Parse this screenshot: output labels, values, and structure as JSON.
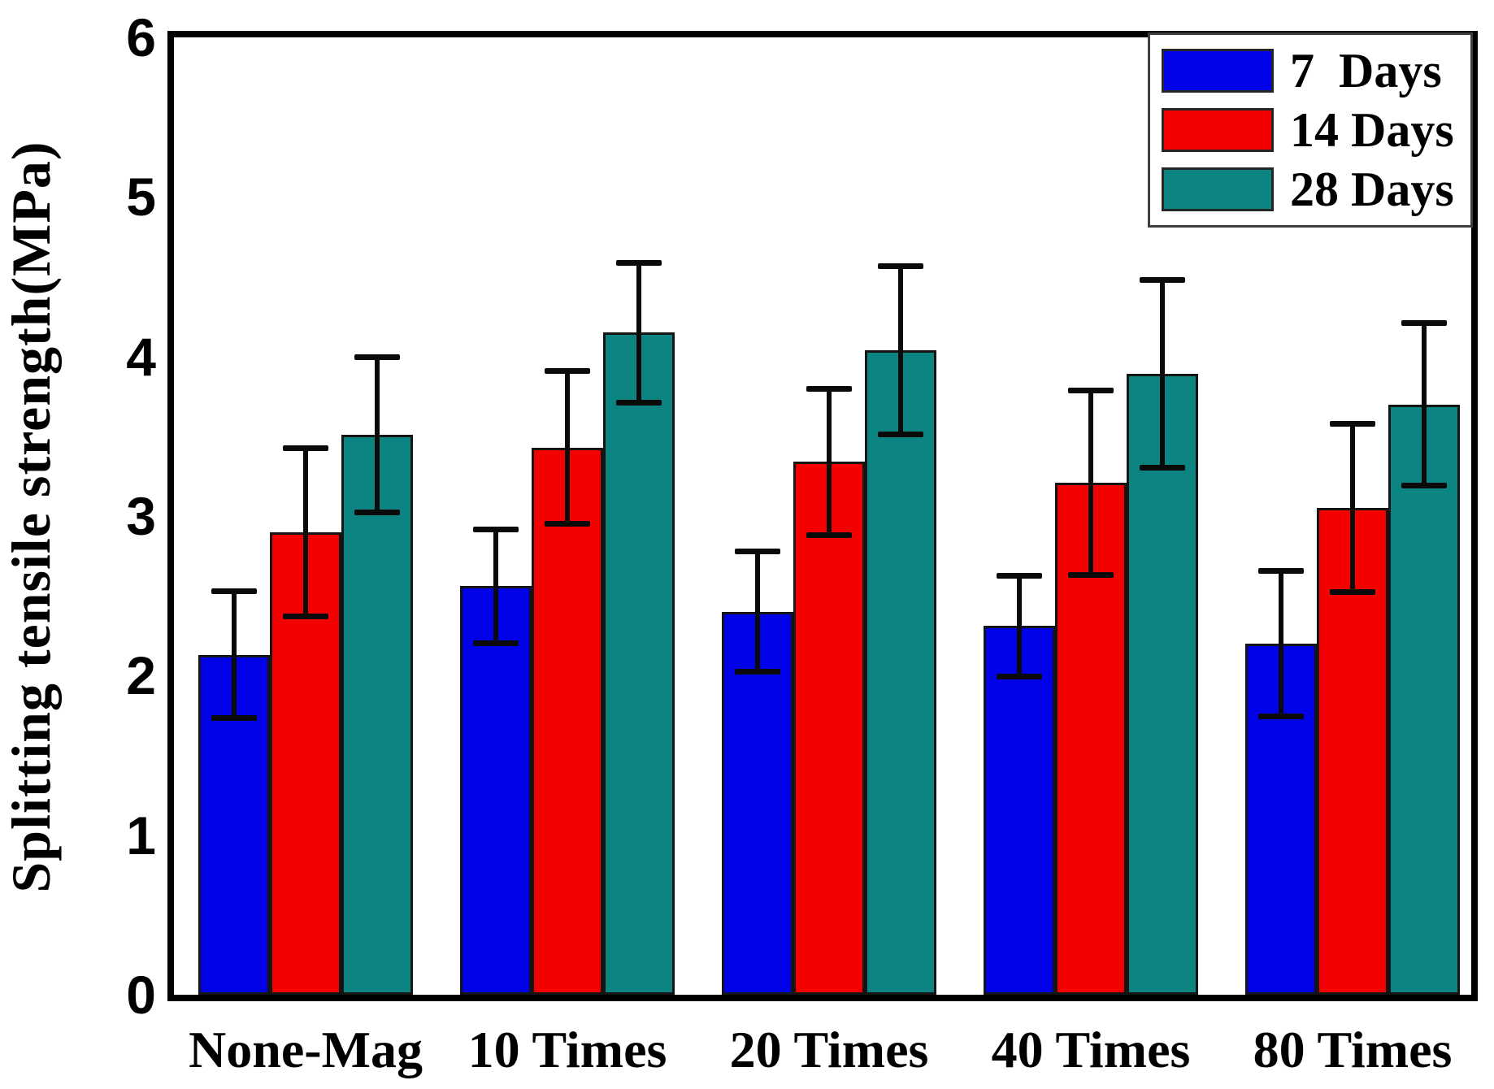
{
  "figure": {
    "y_axis_title": "Splitting tensile strength(MPa)"
  },
  "chart_data": {
    "type": "bar",
    "title": "",
    "xlabel": "",
    "ylabel": "Splitting tensile strength(MPa)",
    "categories": [
      "None-Mag",
      "10 Times",
      "20 Times",
      "40 Times",
      "80 Times"
    ],
    "series": [
      {
        "name": "7  Days",
        "color": "#0202e8",
        "values": [
          2.13,
          2.56,
          2.4,
          2.31,
          2.2
        ],
        "errors": [
          0.4,
          0.36,
          0.38,
          0.32,
          0.46
        ]
      },
      {
        "name": "14 Days",
        "color": "#f40000",
        "values": [
          2.9,
          3.43,
          3.34,
          3.21,
          3.05
        ],
        "errors": [
          0.53,
          0.48,
          0.46,
          0.58,
          0.53
        ]
      },
      {
        "name": "28 Days",
        "color": "#0c8482",
        "values": [
          3.51,
          4.15,
          4.04,
          3.89,
          3.7
        ],
        "errors": [
          0.49,
          0.44,
          0.53,
          0.59,
          0.51
        ]
      }
    ],
    "ylim": [
      0,
      6
    ],
    "y_ticks": [
      "0",
      "1",
      "2",
      "3",
      "4",
      "5",
      "6"
    ],
    "grid": false,
    "error_bars": true,
    "legend_position": "top-right",
    "bar_outline_color": "#141414",
    "error_bar_color": "#0a0a0a"
  }
}
